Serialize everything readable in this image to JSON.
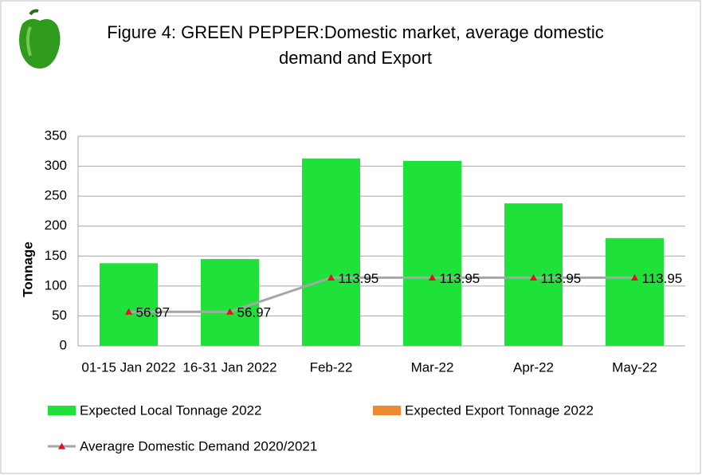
{
  "chart_data": {
    "type": "bar",
    "title": [
      "Figure 4: GREEN PEPPER:Domestic market, average domestic",
      "demand and Export"
    ],
    "y_label": "Tonnage",
    "categories": [
      "01-15 Jan 2022",
      "16-31 Jan 2022",
      "Feb-22",
      "Mar-22",
      "Apr-22",
      "May-22"
    ],
    "series": [
      {
        "name": "Expected Local Tonnage 2022",
        "type": "bar",
        "color": "#1ee23a",
        "values": [
          138,
          145,
          313,
          309,
          238,
          180
        ]
      },
      {
        "name": "Expected  Export Tonnage 2022",
        "type": "bar",
        "color": "#f08a30",
        "values": [
          0,
          0,
          0,
          0,
          0,
          0
        ]
      },
      {
        "name": "Averagre Domestic Demand 2020/2021",
        "type": "line",
        "color": "#a6a6a6",
        "marker_color": "#e0141e",
        "values": [
          56.97,
          56.97,
          113.95,
          113.95,
          113.95,
          113.95
        ]
      }
    ],
    "ylim": [
      0,
      350
    ],
    "yticks": [
      0,
      50,
      100,
      150,
      200,
      250,
      300,
      350
    ],
    "grid": true
  }
}
